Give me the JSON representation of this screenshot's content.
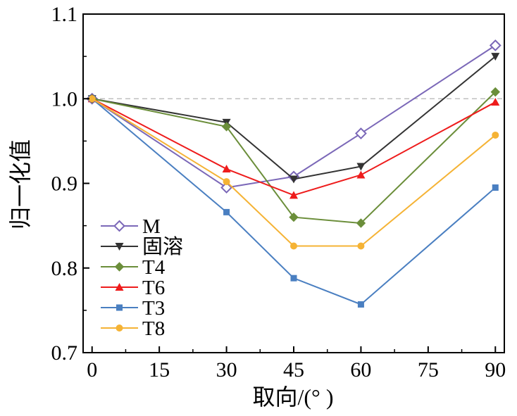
{
  "chart_data": {
    "type": "line",
    "title": "",
    "xlabel": "取向/(°  )",
    "ylabel": "归一化值",
    "x": [
      0,
      30,
      45,
      60,
      90
    ],
    "xlim": [
      -2,
      92
    ],
    "ylim": [
      0.7,
      1.1
    ],
    "xticks": [
      "0",
      "15",
      "30",
      "45",
      "60",
      "75",
      "90"
    ],
    "yticks": [
      "0.7",
      "0.8",
      "0.9",
      "1.0",
      "1.1"
    ],
    "reference_line": {
      "y": 1.0,
      "color": "#c0c0c0",
      "style": "dashed"
    },
    "grid": false,
    "legend_position": "bottom-left",
    "series": [
      {
        "name": "M",
        "marker": "diamond-open",
        "color": "#7b68b8",
        "values": [
          1.0,
          0.895,
          0.908,
          0.959,
          1.063
        ]
      },
      {
        "name": "固溶",
        "marker": "triangle-down",
        "color": "#333333",
        "values": [
          1.0,
          0.972,
          0.905,
          0.92,
          1.05
        ]
      },
      {
        "name": "T4",
        "marker": "diamond",
        "color": "#6b8e3a",
        "values": [
          1.0,
          0.967,
          0.86,
          0.853,
          1.008
        ]
      },
      {
        "name": "T6",
        "marker": "triangle-up",
        "color": "#ee1c1c",
        "values": [
          1.0,
          0.917,
          0.886,
          0.91,
          0.996
        ]
      },
      {
        "name": "T3",
        "marker": "square",
        "color": "#4a7fc1",
        "values": [
          1.0,
          0.866,
          0.788,
          0.757,
          0.895
        ]
      },
      {
        "name": "T8",
        "marker": "circle",
        "color": "#f5b335",
        "values": [
          1.0,
          0.902,
          0.826,
          0.826,
          0.957
        ]
      }
    ]
  }
}
